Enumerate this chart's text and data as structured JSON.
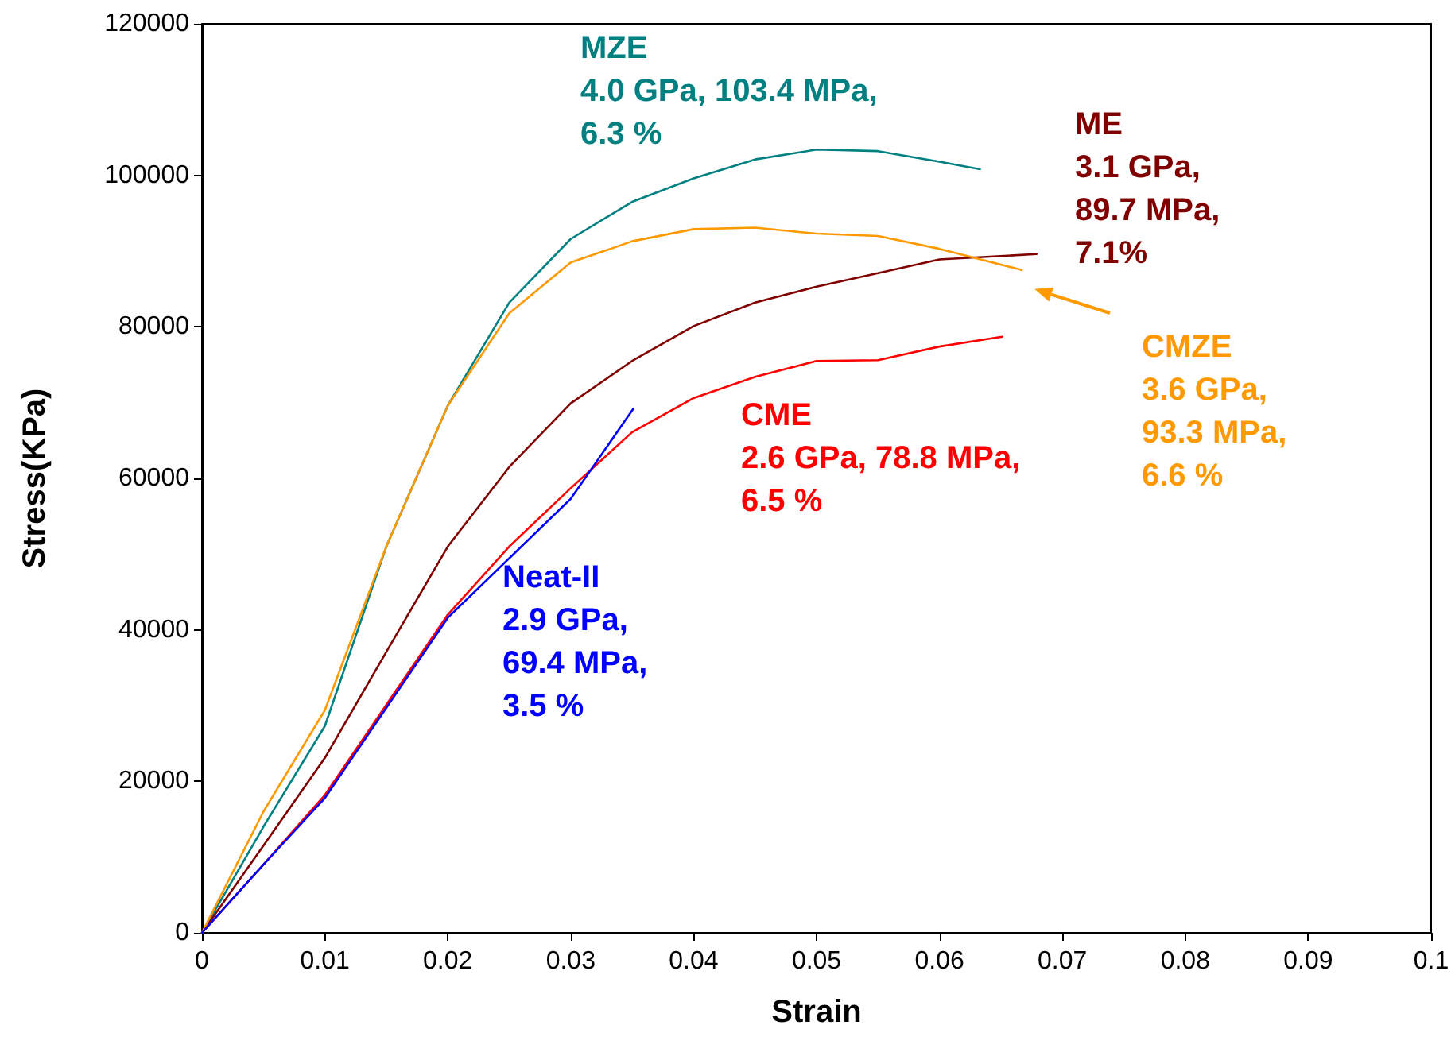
{
  "chart_data": {
    "type": "line",
    "xlabel": "Strain",
    "ylabel": "Stress(KPa)",
    "xlim": [
      0,
      0.1
    ],
    "xticks": [
      0,
      0.01,
      0.02,
      0.03,
      0.04,
      0.05,
      0.06,
      0.07,
      0.08,
      0.09,
      0.1
    ],
    "ylim": [
      0,
      120000
    ],
    "yticks": [
      0,
      20000,
      40000,
      60000,
      80000,
      100000,
      120000
    ],
    "grid": false,
    "legend": false,
    "marker": "none",
    "line_style": "solid",
    "series": [
      {
        "name": "MZE",
        "color": "#008080",
        "x": [
          0,
          0.005,
          0.01,
          0.015,
          0.02,
          0.025,
          0.03,
          0.035,
          0.04,
          0.045,
          0.05,
          0.055,
          0.06,
          0.0633
        ],
        "values": [
          0,
          14000,
          27300,
          51000,
          69600,
          83200,
          91600,
          96500,
          99600,
          102100,
          103400,
          103200,
          101800,
          100800
        ]
      },
      {
        "name": "ME",
        "color": "#800000",
        "x": [
          0,
          0.005,
          0.01,
          0.015,
          0.02,
          0.025,
          0.03,
          0.035,
          0.04,
          0.045,
          0.05,
          0.055,
          0.06,
          0.0679
        ],
        "values": [
          0,
          11500,
          23100,
          37100,
          51000,
          61500,
          69900,
          75500,
          80100,
          83200,
          85300,
          87100,
          88900,
          89600
        ]
      },
      {
        "name": "CMZE",
        "color": "#ff9900",
        "x": [
          0,
          0.005,
          0.01,
          0.015,
          0.02,
          0.025,
          0.03,
          0.035,
          0.04,
          0.045,
          0.05,
          0.055,
          0.06,
          0.0667
        ],
        "values": [
          0,
          16000,
          29400,
          51000,
          69600,
          81800,
          88500,
          91300,
          92900,
          93100,
          92300,
          92000,
          90300,
          87500
        ]
      },
      {
        "name": "CME",
        "color": "#ff0000",
        "x": [
          0,
          0.005,
          0.01,
          0.015,
          0.02,
          0.025,
          0.03,
          0.035,
          0.04,
          0.045,
          0.05,
          0.055,
          0.06,
          0.0651
        ],
        "values": [
          0,
          9000,
          18200,
          30100,
          42000,
          51000,
          58700,
          66100,
          70600,
          73400,
          75500,
          75600,
          77400,
          78700
        ]
      },
      {
        "name": "Neat-II",
        "color": "#0000ff",
        "x": [
          0,
          0.005,
          0.01,
          0.02,
          0.03,
          0.0351
        ],
        "values": [
          0,
          9000,
          17800,
          41600,
          57300,
          69200
        ]
      }
    ],
    "annotations": [
      "4.0 GPa, 103.4 MPa,\n6.3 %",
      "3.1 GPa,\n89.7 MPa,\n7.1%",
      "3.6 GPa,\n93.3 MPa,\n6.6 %",
      "2.6 GPa, 78.8 MPa,\n6.5 %",
      "2.9 GPa,\n69.4 MPa,\n3.5 %"
    ]
  }
}
